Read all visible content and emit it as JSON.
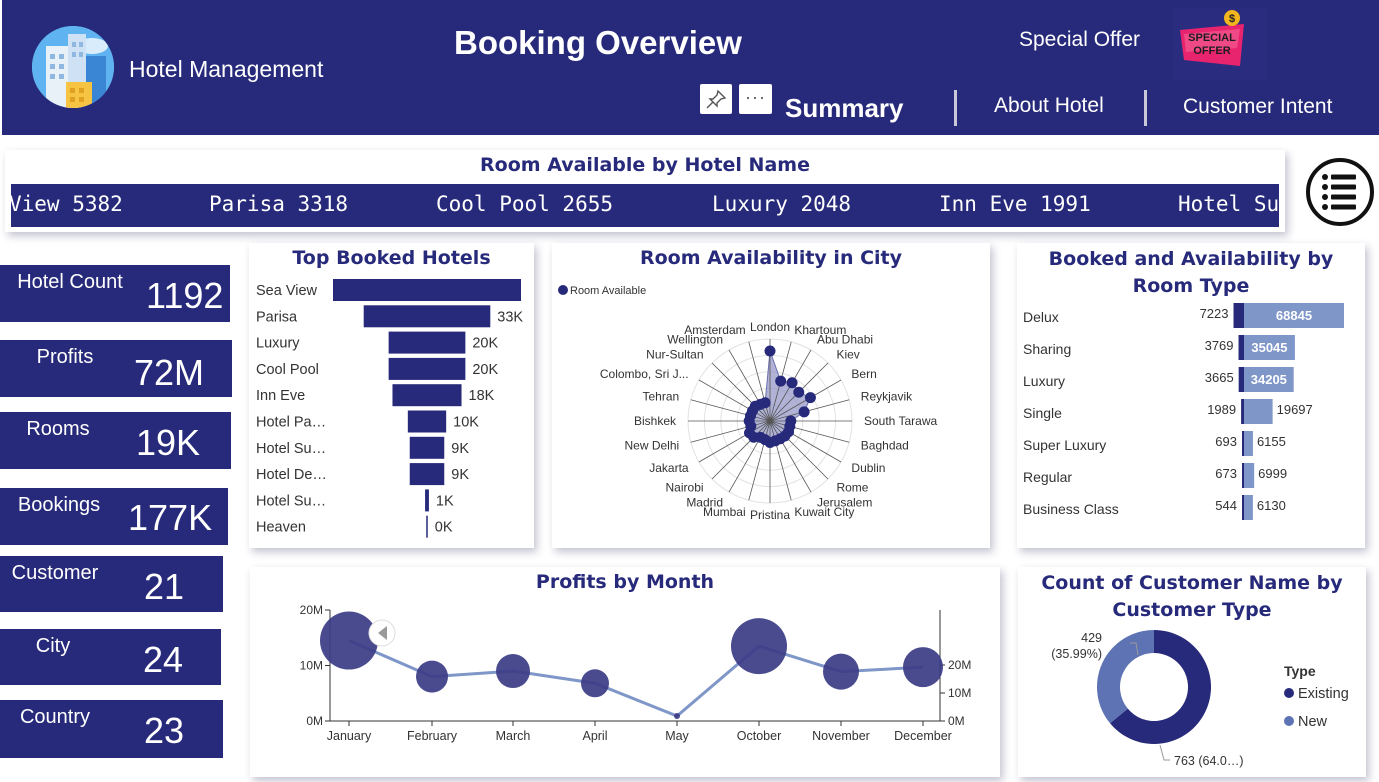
{
  "header": {
    "app_name": "Hotel Management",
    "page_title": "Booking Overview",
    "special_offer_label": "Special Offer",
    "offer_badge_line1": "SPECIAL",
    "offer_badge_line2": "OFFER",
    "nav": [
      {
        "label": "Summary"
      },
      {
        "label": "About Hotel"
      },
      {
        "label": "Customer Intent"
      }
    ],
    "more_glyph": "···"
  },
  "marquee": {
    "title": "Room Available by Hotel Name",
    "items": [
      "View 5382",
      "Parisa 3318",
      "Cool Pool 2655",
      "Luxury 2048",
      "Inn Eve 1991",
      "Hotel Su"
    ]
  },
  "kpis": [
    {
      "label": "Hotel Count",
      "value": "1192"
    },
    {
      "label": "Profits",
      "value": "72M"
    },
    {
      "label": "Rooms",
      "value": "19K"
    },
    {
      "label": "Bookings",
      "value": "177K"
    },
    {
      "label": "Customer",
      "value": "21"
    },
    {
      "label": "City",
      "value": "24"
    },
    {
      "label": "Country",
      "value": "23"
    }
  ],
  "colors": {
    "navy": "#272a7a",
    "steel": "#7f96c8",
    "mid": "#3b3c86"
  },
  "chart_data": [
    {
      "id": "top-booked-hotels",
      "type": "bar",
      "title": "Top Booked Hotels",
      "categories": [
        "Sea View",
        "Parisa",
        "Luxury",
        "Cool Pool",
        "Inn Eve",
        "Hotel Pa…",
        "Hotel Su…",
        "Hotel De…",
        "Hotel Su…",
        "Heaven"
      ],
      "values": [
        49000,
        33000,
        20000,
        20000,
        18000,
        10000,
        9000,
        9000,
        1000,
        0
      ],
      "data_labels": [
        "",
        "33K",
        "20K",
        "20K",
        "18K",
        "10K",
        "9K",
        "9K",
        "1K",
        "0K"
      ],
      "orientation": "horizontal-funnel"
    },
    {
      "id": "room-availability-city",
      "type": "radar",
      "title": "Room Availability in City",
      "legend": [
        "Room Available"
      ],
      "categories": [
        "London",
        "Khartoum",
        "Abu Dhabi",
        "Kiev",
        "Bern",
        "Reykjavik",
        "South Tarawa",
        "Baghdad",
        "Dublin",
        "Rome",
        "Jerusalem",
        "Kuwait City",
        "Pristina",
        "Mumbai",
        "Madrid",
        "Nairobi",
        "Jakarta",
        "New Delhi",
        "Bishkek",
        "Tehran",
        "Colombo, Sri J...",
        "Nur-Sultan",
        "Wellington",
        "Amsterdam"
      ],
      "values": [
        3620,
        2710,
        2800,
        2690,
        2880,
        2520,
        2060,
        2050,
        2080,
        2070,
        2050,
        2050,
        2080,
        2010,
        2000,
        2130,
        2150,
        2030,
        2060,
        2040,
        2040,
        2060,
        2010,
        2000
      ]
    },
    {
      "id": "booked-availability-room-type",
      "type": "bar",
      "title": "Booked and Availability by Room Type",
      "categories": [
        "Delux",
        "Sharing",
        "Luxury",
        "Single",
        "Super Luxury",
        "Regular",
        "Business Class"
      ],
      "series": [
        {
          "values": [
            7223,
            3769,
            3665,
            1989,
            693,
            673,
            544
          ]
        },
        {
          "values": [
            68845,
            35045,
            34205,
            19697,
            6155,
            6999,
            6130
          ]
        }
      ],
      "labels_left": [
        "7223",
        "3769",
        "3665",
        "1989",
        "693",
        "673",
        "544"
      ],
      "labels_right": [
        "68845",
        "35045",
        "34205",
        "19697",
        "6155",
        "6999",
        "6130"
      ],
      "orientation": "horizontal"
    },
    {
      "id": "profits-by-month",
      "type": "line",
      "title": "Profits by Month",
      "categories": [
        "January",
        "February",
        "March",
        "April",
        "May",
        "October",
        "November",
        "December"
      ],
      "series": [
        {
          "values": [
            14500000,
            8000000,
            9000000,
            6800000,
            900000,
            13500000,
            8900000,
            9700000
          ]
        }
      ],
      "bubble_sizes": [
        29,
        16,
        17,
        14,
        3,
        28,
        18,
        20
      ],
      "y_left_ticks": [
        "20M",
        "10M",
        "0M"
      ],
      "y_right_ticks": [
        "20M",
        "10M",
        "0M"
      ],
      "ylim": [
        0,
        20000000
      ]
    },
    {
      "id": "customer-type",
      "type": "pie",
      "title": "Count of Customer Name by Customer Type",
      "legend_title": "Type",
      "slices": [
        {
          "name": "Existing",
          "value": 763,
          "label": "763 (64.0…)"
        },
        {
          "name": "New",
          "value": 429,
          "label": "429 (35.99%)"
        }
      ]
    }
  ]
}
